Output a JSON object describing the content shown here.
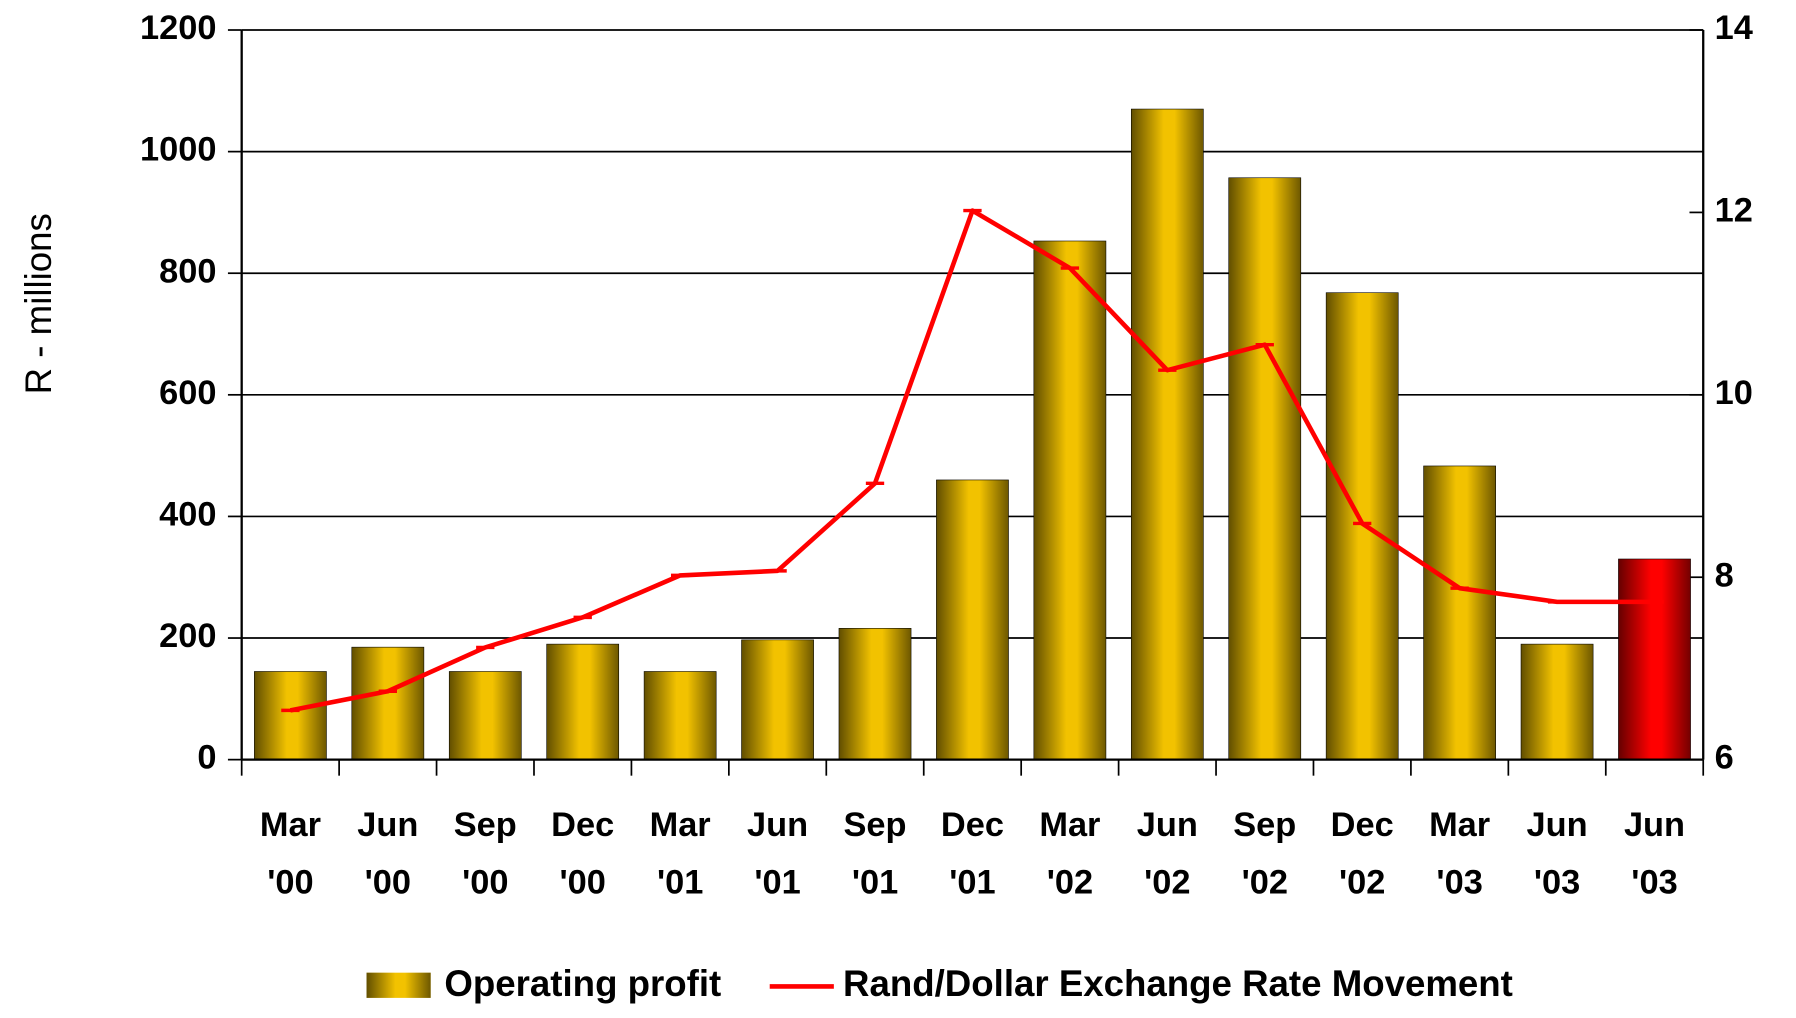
{
  "chart_data": {
    "type": "bar_line",
    "y_axis_label": "R - millions",
    "categories": [
      "Mar '00",
      "Jun '00",
      "Sep '00",
      "Dec '00",
      "Mar '01",
      "Jun '01",
      "Sep '01",
      "Dec '01",
      "Mar '02",
      "Jun '02",
      "Sep '02",
      "Dec '02",
      "Mar '03",
      "Jun '03",
      "Jun '03"
    ],
    "series": [
      {
        "name": "Operating profit",
        "type": "bar",
        "color": "#f2c200",
        "colors": [
          "#f2c200",
          "#f2c200",
          "#f2c200",
          "#f2c200",
          "#f2c200",
          "#f2c200",
          "#f2c200",
          "#f2c200",
          "#f2c200",
          "#f2c200",
          "#f2c200",
          "#f2c200",
          "#f2c200",
          "#f2c200",
          "#ff0000"
        ],
        "values": [
          145,
          185,
          145,
          190,
          145,
          197,
          216,
          460,
          853,
          1070,
          957,
          768,
          483,
          190,
          330
        ]
      },
      {
        "name": "Rand/Dollar Exchange Rate Movement",
        "type": "line",
        "color": "#ff0000",
        "axis": "y2",
        "values": [
          6.54,
          6.75,
          7.23,
          7.56,
          8.02,
          8.07,
          9.03,
          12.02,
          11.39,
          10.27,
          10.55,
          8.59,
          7.88,
          7.73,
          7.73
        ]
      }
    ],
    "ylim": [
      0,
      1200
    ],
    "yticks": [
      0,
      200,
      400,
      600,
      800,
      1000,
      1200
    ],
    "y2lim": [
      6,
      14
    ],
    "y2ticks": [
      6,
      8,
      10,
      12,
      14
    ],
    "grid": true,
    "legend": "bottom"
  }
}
